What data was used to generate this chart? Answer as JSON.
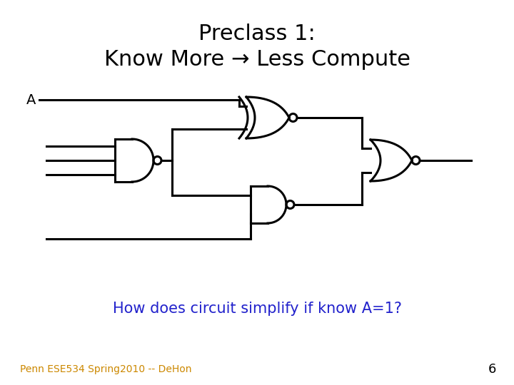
{
  "title_line1": "Preclass 1:",
  "title_line2": "Know More → Less Compute",
  "label_A": "A",
  "question": "How does circuit simplify if know A=1?",
  "footer": "Penn ESE534 Spring2010 -- DeHon",
  "page_num": "6",
  "title_fontsize": 22,
  "question_fontsize": 15,
  "footer_fontsize": 10,
  "page_fontsize": 13,
  "label_fontsize": 14,
  "title_color": "#000000",
  "question_color": "#2222cc",
  "footer_color": "#cc8800",
  "page_color": "#000000",
  "bg_color": "#ffffff",
  "line_color": "#000000",
  "line_width": 2.2
}
